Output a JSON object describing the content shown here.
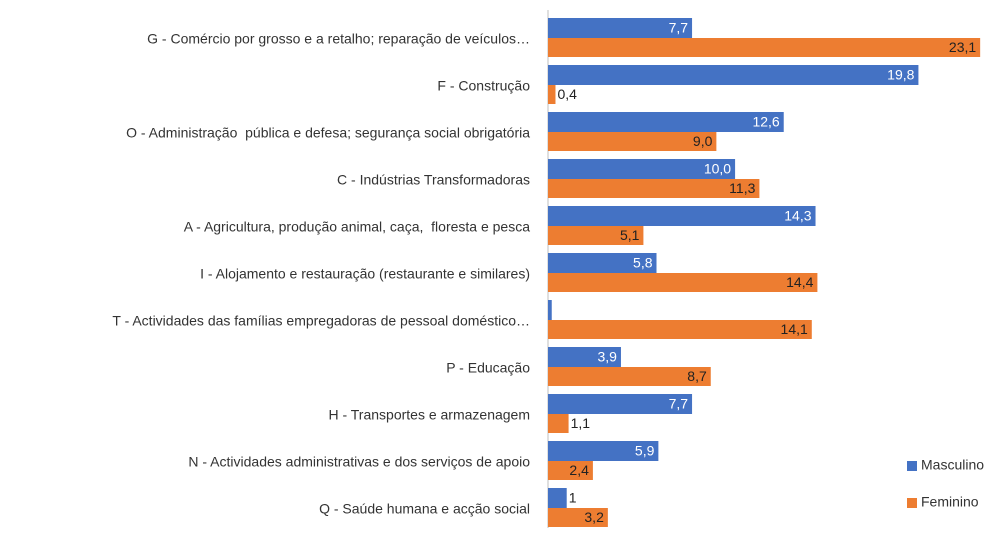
{
  "chart_data": {
    "type": "hbar",
    "categories": [
      "G - Comércio por grosso e a retalho; reparação de veículos…",
      "F - Construção",
      "O - Administração  pública e defesa; segurança social obrigatória",
      "C - Indústrias Transformadoras",
      "A - Agricultura, produção animal, caça,  floresta e pesca",
      "I - Alojamento e restauração (restaurante e similares)",
      "T - Actividades das famílias empregadoras de pessoal doméstico…",
      "P - Educação",
      "H - Transportes e armazenagem",
      "N - Actividades administrativas e dos serviços de apoio",
      "Q - Saúde humana e acção social"
    ],
    "series": [
      {
        "name": "Masculino",
        "color": "#4472c4",
        "values": [
          7.7,
          19.8,
          12.6,
          10.0,
          14.3,
          5.8,
          0.2,
          3.9,
          7.7,
          5.9,
          1
        ],
        "value_labels": [
          "7,7",
          "19,8",
          "12,6",
          "10,0",
          "14,3",
          "5,8",
          null,
          "3,9",
          "7,7",
          "5,9",
          "1"
        ]
      },
      {
        "name": "Feminino",
        "color": "#ed7d31",
        "values": [
          23.1,
          0.4,
          9.0,
          11.3,
          5.1,
          14.4,
          14.1,
          8.7,
          1.1,
          2.4,
          3.2
        ],
        "value_labels": [
          "23,1",
          "0,4",
          "9,0",
          "11,3",
          "5,1",
          "14,4",
          "14,1",
          "8,7",
          "1,1",
          "2,4",
          "3,2"
        ]
      }
    ],
    "xlim": [
      0,
      24
    ],
    "legend": "bottom-right"
  }
}
